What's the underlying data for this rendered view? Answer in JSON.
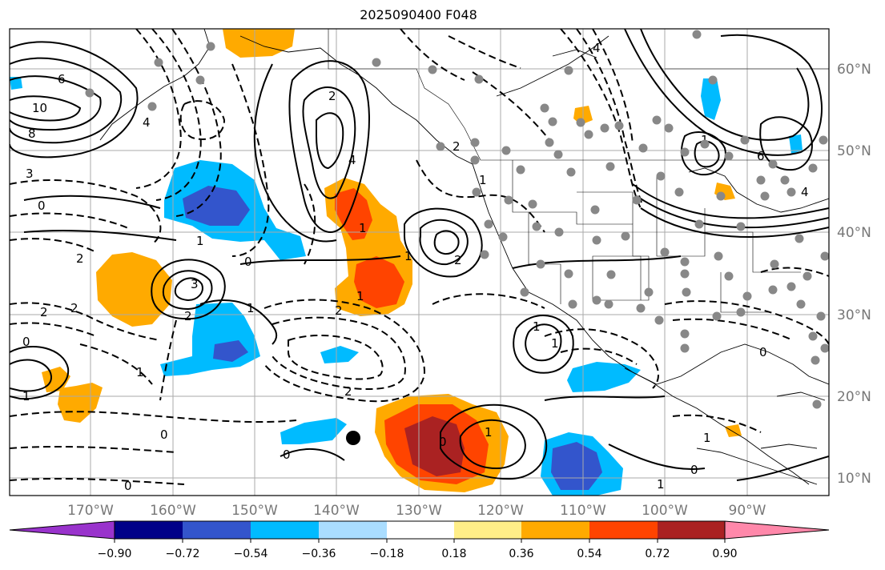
{
  "title": "2025090400 F048",
  "map": {
    "projection": "plate-carree",
    "lon_range": [
      -180,
      -80
    ],
    "lat_range": [
      8,
      65
    ],
    "lon_ticks": [
      -170,
      -160,
      -150,
      -140,
      -130,
      -120,
      -110,
      -100,
      -90
    ],
    "lon_labels": [
      "170°W",
      "160°W",
      "150°W",
      "140°W",
      "130°W",
      "120°W",
      "110°W",
      "100°W",
      "90°W"
    ],
    "lat_ticks": [
      10,
      20,
      30,
      40,
      50,
      60
    ],
    "lat_labels": [
      "10°N",
      "20°N",
      "30°N",
      "40°N",
      "50°N",
      "60°N"
    ],
    "grid": true,
    "contour_labels": [
      "6",
      "10",
      "8",
      "4",
      "3",
      "0",
      "1",
      "2",
      "3",
      "2",
      "2",
      "2",
      "0",
      "1",
      "4",
      "1",
      "1",
      "2",
      "0",
      "1",
      "2",
      "1",
      "1",
      "0",
      "1",
      "0",
      "2",
      "2",
      "1",
      "1",
      "1",
      "1",
      "0",
      "0",
      "2",
      "1",
      "0",
      "0",
      "1",
      "6",
      "4",
      "4"
    ],
    "storm_marker": {
      "lon": -137.5,
      "lat": 15
    }
  },
  "colorbar": {
    "colors": [
      "#9933cc",
      "#000088",
      "#3355cc",
      "#00bbff",
      "#aaddff",
      "#ffffff",
      "#ffee88",
      "#ffaa00",
      "#ff4400",
      "#aa2222",
      "#ff88aa"
    ],
    "tick_labels": [
      "−0.90",
      "−0.72",
      "−0.54",
      "−0.36",
      "−0.18",
      "0.18",
      "0.36",
      "0.54",
      "0.72",
      "0.90"
    ],
    "extend": "both"
  }
}
